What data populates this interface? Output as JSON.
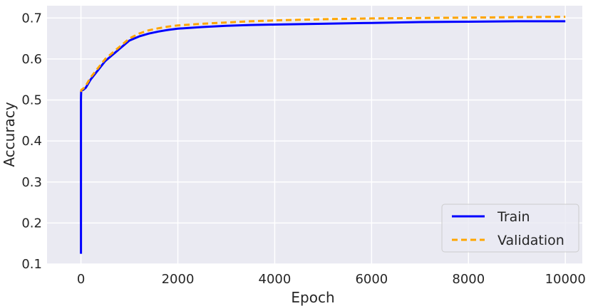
{
  "chart_data": {
    "type": "line",
    "title": "",
    "xlabel": "Epoch",
    "ylabel": "Accuracy",
    "xlim": [
      -700,
      10350
    ],
    "ylim": [
      0.1,
      0.73
    ],
    "xticks": [
      0,
      2000,
      4000,
      6000,
      8000,
      10000
    ],
    "xtick_labels": [
      "0",
      "2000",
      "4000",
      "6000",
      "8000",
      "10000"
    ],
    "yticks": [
      0.1,
      0.2,
      0.3,
      0.4,
      0.5,
      0.6,
      0.7
    ],
    "ytick_labels": [
      "0.1",
      "0.2",
      "0.3",
      "0.4",
      "0.5",
      "0.6",
      "0.7"
    ],
    "grid": true,
    "legend_position": "bottom-right",
    "colors": {
      "background": "#eaeaf2",
      "grid": "#ffffff",
      "train": "#0000ff",
      "validation": "#ffa500"
    },
    "series": [
      {
        "name": "Train",
        "style": "solid",
        "color": "#0000ff",
        "x": [
          0,
          1,
          2,
          5,
          10,
          50,
          100,
          200,
          300,
          400,
          500,
          600,
          700,
          800,
          900,
          1000,
          1200,
          1400,
          1600,
          1800,
          2000,
          2500,
          3000,
          3500,
          4000,
          5000,
          6000,
          7000,
          8000,
          9000,
          10000
        ],
        "y": [
          0.125,
          0.5,
          0.51,
          0.52,
          0.523,
          0.525,
          0.53,
          0.55,
          0.565,
          0.58,
          0.595,
          0.605,
          0.615,
          0.625,
          0.635,
          0.645,
          0.655,
          0.662,
          0.667,
          0.671,
          0.674,
          0.678,
          0.681,
          0.683,
          0.684,
          0.686,
          0.688,
          0.69,
          0.691,
          0.692,
          0.692
        ]
      },
      {
        "name": "Validation",
        "style": "dashed",
        "color": "#ffa500",
        "x": [
          0,
          10,
          50,
          100,
          200,
          300,
          400,
          500,
          600,
          700,
          800,
          900,
          1000,
          1200,
          1400,
          1600,
          1800,
          2000,
          2500,
          3000,
          3500,
          4000,
          5000,
          6000,
          7000,
          8000,
          9000,
          10000
        ],
        "y": [
          0.52,
          0.525,
          0.528,
          0.535,
          0.555,
          0.57,
          0.585,
          0.6,
          0.61,
          0.62,
          0.63,
          0.64,
          0.65,
          0.662,
          0.67,
          0.675,
          0.679,
          0.682,
          0.686,
          0.689,
          0.692,
          0.694,
          0.697,
          0.699,
          0.7,
          0.701,
          0.702,
          0.703
        ]
      }
    ]
  }
}
